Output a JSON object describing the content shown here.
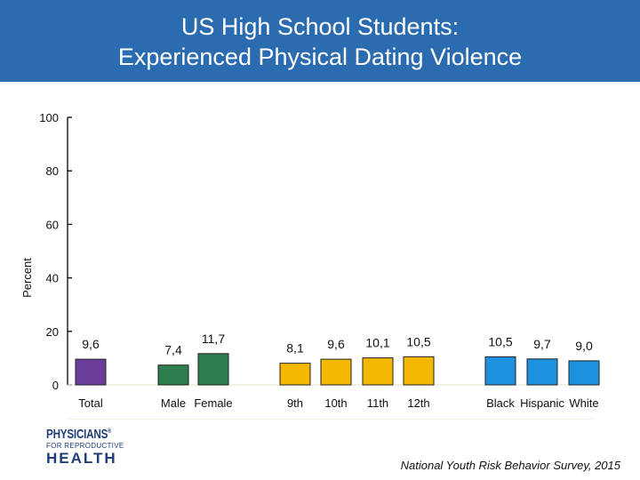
{
  "header": {
    "title_line1": "US High School Students:",
    "title_line2": "Experienced Physical Dating Violence",
    "bg_color": "#2b6cb0"
  },
  "chart_data": {
    "type": "bar",
    "ylabel": "Percent",
    "xlabel": "",
    "ylim": [
      0,
      100
    ],
    "yticks": [
      0,
      20,
      40,
      60,
      80,
      100
    ],
    "grid": false,
    "groups": [
      {
        "categories": [
          "Total"
        ],
        "values": [
          9.6
        ],
        "labels": [
          "9,6"
        ],
        "color": "#6a3d9a"
      },
      {
        "categories": [
          "Male",
          "Female"
        ],
        "values": [
          7.4,
          11.7
        ],
        "labels": [
          "7,4",
          "11,7"
        ],
        "color": "#2e7d4f"
      },
      {
        "categories": [
          "9th",
          "10th",
          "11th",
          "12th"
        ],
        "values": [
          8.1,
          9.6,
          10.1,
          10.5
        ],
        "labels": [
          "8,1",
          "9,6",
          "10,1",
          "10,5"
        ],
        "color": "#f5b800"
      },
      {
        "categories": [
          "Black",
          "Hispanic",
          "White"
        ],
        "values": [
          10.5,
          9.7,
          9.0
        ],
        "labels": [
          "10,5",
          "9,7",
          "9,0"
        ],
        "color": "#1e90e0"
      }
    ]
  },
  "logo": {
    "line1": "PHYSICIANS",
    "line2": "FOR REPRODUCTIVE",
    "line3": "HEALTH",
    "mark": "®"
  },
  "source": "National Youth Risk Behavior Survey, 2015"
}
